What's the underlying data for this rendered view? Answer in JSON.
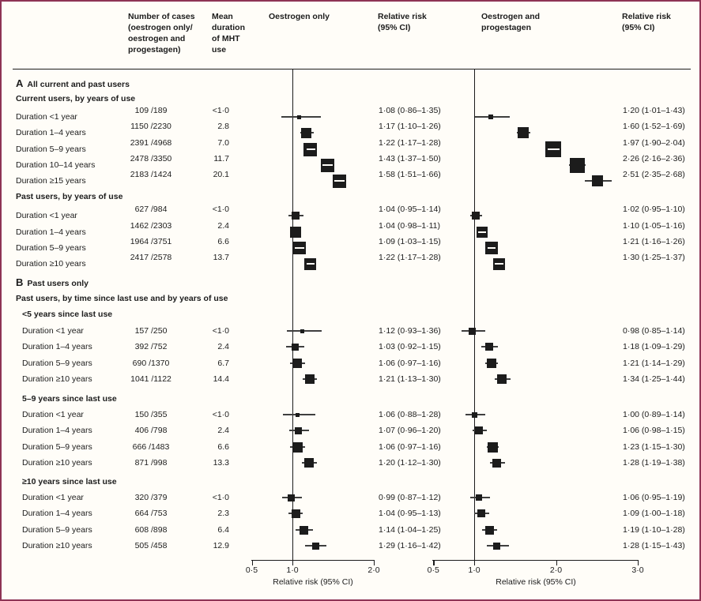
{
  "figure": {
    "bg": "#fffdf8",
    "border_color": "#8e3455",
    "ink": "#1c1c1c",
    "ci_line_color": "#3f3f3f"
  },
  "header": {
    "col_cases": [
      "Number of cases",
      "(oestrogen only/",
      "oestrogen and",
      "progestagen)"
    ],
    "col_duration": [
      "Mean",
      "duration",
      "of MHT",
      "use"
    ],
    "col_plot_left": "Oestrogen only",
    "col_rr_left": [
      "Relative risk",
      "(95% CI)"
    ],
    "col_plot_right": [
      "Oestrogen and",
      "progestagen"
    ],
    "col_rr_right": [
      "Relative risk",
      "(95% CI)"
    ]
  },
  "chart_data": {
    "type": "forest",
    "panels": [
      {
        "name": "Oestrogen only",
        "xlabel": "Relative risk (95% CI)",
        "scale": "linear",
        "xlim": [
          0.5,
          2.0
        ],
        "null_line": 1.0,
        "ticks": [
          {
            "v": 0.5,
            "label": "0·5"
          },
          {
            "v": 1.0,
            "label": "1·0"
          },
          {
            "v": 2.0,
            "label": "2·0"
          }
        ]
      },
      {
        "name": "Oestrogen and progestagen",
        "xlabel": "Relative risk (95% CI)",
        "scale": "linear",
        "xlim": [
          0.5,
          3.0
        ],
        "null_line": 1.0,
        "ticks": [
          {
            "v": 0.5,
            "label": "0·5"
          },
          {
            "v": 1.0,
            "label": "1·0"
          },
          {
            "v": 2.0,
            "label": "2·0"
          },
          {
            "v": 3.0,
            "label": "3·0"
          }
        ]
      }
    ],
    "rows": [
      {
        "kind": "section",
        "letter": "A",
        "text": "All current and past users"
      },
      {
        "kind": "group",
        "text": "Current users, by years of use",
        "indent": false
      },
      {
        "kind": "data",
        "sectionA": true,
        "indent": false,
        "label": "Duration <1 year",
        "cases": "109 /189",
        "duration": "<1·0",
        "left": {
          "rr": 1.08,
          "lo": 0.86,
          "hi": 1.35,
          "text": "1·08 (0·86–1·35)",
          "weight": 5
        },
        "right": {
          "rr": 1.2,
          "lo": 1.01,
          "hi": 1.43,
          "text": "1·20 (1·01–1·43)",
          "weight": 6
        }
      },
      {
        "kind": "data",
        "sectionA": true,
        "indent": false,
        "label": "Duration 1–4 years",
        "cases": "1150 /2230",
        "duration": "2.8",
        "left": {
          "rr": 1.17,
          "lo": 1.1,
          "hi": 1.26,
          "text": "1·17 (1·10–1·26)",
          "weight": 13
        },
        "right": {
          "rr": 1.6,
          "lo": 1.52,
          "hi": 1.69,
          "text": "1·60 (1·52–1·69)",
          "weight": 14
        }
      },
      {
        "kind": "data",
        "sectionA": true,
        "indent": false,
        "label": "Duration 5–9 years",
        "cases": "2391 /4968",
        "duration": "7.0",
        "left": {
          "rr": 1.22,
          "lo": 1.17,
          "hi": 1.28,
          "text": "1·22 (1·17–1·28)",
          "weight": 17
        },
        "right": {
          "rr": 1.97,
          "lo": 1.9,
          "hi": 2.04,
          "text": "1·97 (1·90–2·04)",
          "weight": 20
        }
      },
      {
        "kind": "data",
        "sectionA": true,
        "indent": false,
        "label": "Duration 10–14 years",
        "cases": "2478 /3350",
        "duration": "11.7",
        "left": {
          "rr": 1.43,
          "lo": 1.37,
          "hi": 1.5,
          "text": "1·43 (1·37–1·50)",
          "weight": 17
        },
        "right": {
          "rr": 2.26,
          "lo": 2.16,
          "hi": 2.36,
          "text": "2·26 (2·16–2·36)",
          "weight": 19
        }
      },
      {
        "kind": "data",
        "sectionA": true,
        "indent": false,
        "label": "Duration ≥15 years",
        "cases": "2183 /1424",
        "duration": "20.1",
        "left": {
          "rr": 1.58,
          "lo": 1.51,
          "hi": 1.66,
          "text": "1·58 (1·51–1·66)",
          "weight": 17
        },
        "right": {
          "rr": 2.51,
          "lo": 2.35,
          "hi": 2.68,
          "text": "2·51 (2·35–2·68)",
          "weight": 14
        }
      },
      {
        "kind": "group",
        "text": "Past users, by years of use",
        "indent": false
      },
      {
        "kind": "data",
        "sectionA": true,
        "indent": false,
        "label": "Duration <1 year",
        "cases": "627 /984",
        "duration": "<1·0",
        "left": {
          "rr": 1.04,
          "lo": 0.95,
          "hi": 1.14,
          "text": "1·04 (0·95–1·14)",
          "weight": 10
        },
        "right": {
          "rr": 1.02,
          "lo": 0.95,
          "hi": 1.1,
          "text": "1·02 (0·95–1·10)",
          "weight": 10
        }
      },
      {
        "kind": "data",
        "sectionA": true,
        "indent": false,
        "label": "Duration 1–4 years",
        "cases": "1462 /2303",
        "duration": "2.4",
        "left": {
          "rr": 1.04,
          "lo": 0.98,
          "hi": 1.11,
          "text": "1·04 (0·98–1·11)",
          "weight": 14
        },
        "right": {
          "rr": 1.1,
          "lo": 1.05,
          "hi": 1.16,
          "text": "1·10 (1·05–1·16)",
          "weight": 14
        }
      },
      {
        "kind": "data",
        "sectionA": true,
        "indent": false,
        "label": "Duration 5–9 years",
        "cases": "1964 /3751",
        "duration": "6.6",
        "left": {
          "rr": 1.09,
          "lo": 1.03,
          "hi": 1.15,
          "text": "1·09 (1·03–1·15)",
          "weight": 16
        },
        "right": {
          "rr": 1.21,
          "lo": 1.16,
          "hi": 1.26,
          "text": "1·21 (1·16–1·26)",
          "weight": 16
        }
      },
      {
        "kind": "data",
        "sectionA": true,
        "indent": false,
        "label": "Duration ≥10 years",
        "cases": "2417 /2578",
        "duration": "13.7",
        "left": {
          "rr": 1.22,
          "lo": 1.17,
          "hi": 1.28,
          "text": "1·22 (1·17–1·28)",
          "weight": 15
        },
        "right": {
          "rr": 1.3,
          "lo": 1.25,
          "hi": 1.37,
          "text": "1·30 (1·25–1·37)",
          "weight": 15
        }
      },
      {
        "kind": "section",
        "letter": "B",
        "text": "Past users only"
      },
      {
        "kind": "note",
        "text": "Past users, by time since last use and by years of use"
      },
      {
        "kind": "group",
        "text": "<5 years since last use",
        "indent": true
      },
      {
        "kind": "data",
        "sectionA": false,
        "indent": true,
        "label": "Duration <1 year",
        "cases": "157 /250",
        "duration": "<1·0",
        "left": {
          "rr": 1.12,
          "lo": 0.93,
          "hi": 1.36,
          "text": "1·12 (0·93–1·36)",
          "weight": 5
        },
        "right": {
          "rr": 0.98,
          "lo": 0.85,
          "hi": 1.14,
          "text": "0·98 (0·85–1·14)",
          "weight": 9
        }
      },
      {
        "kind": "data",
        "sectionA": false,
        "indent": true,
        "label": "Duration 1–4 years",
        "cases": "392 /752",
        "duration": "2.4",
        "left": {
          "rr": 1.03,
          "lo": 0.92,
          "hi": 1.15,
          "text": "1·03 (0·92–1·15)",
          "weight": 9
        },
        "right": {
          "rr": 1.18,
          "lo": 1.09,
          "hi": 1.29,
          "text": "1·18 (1·09–1·29)",
          "weight": 10
        }
      },
      {
        "kind": "data",
        "sectionA": false,
        "indent": true,
        "label": "Duration 5–9 years",
        "cases": "690 /1370",
        "duration": "6.7",
        "left": {
          "rr": 1.06,
          "lo": 0.97,
          "hi": 1.16,
          "text": "1·06 (0·97–1·16)",
          "weight": 12
        },
        "right": {
          "rr": 1.21,
          "lo": 1.14,
          "hi": 1.29,
          "text": "1·21 (1·14–1·29)",
          "weight": 12
        }
      },
      {
        "kind": "data",
        "sectionA": false,
        "indent": true,
        "label": "Duration ≥10 years",
        "cases": "1041 /1122",
        "duration": "14.4",
        "left": {
          "rr": 1.21,
          "lo": 1.13,
          "hi": 1.3,
          "text": "1·21 (1·13–1·30)",
          "weight": 12
        },
        "right": {
          "rr": 1.34,
          "lo": 1.25,
          "hi": 1.44,
          "text": "1·34 (1·25–1·44)",
          "weight": 12
        }
      },
      {
        "kind": "group",
        "text": "5–9 years since last use",
        "indent": true
      },
      {
        "kind": "data",
        "sectionA": false,
        "indent": true,
        "label": "Duration <1 year",
        "cases": "150 /355",
        "duration": "<1·0",
        "left": {
          "rr": 1.06,
          "lo": 0.88,
          "hi": 1.28,
          "text": "1·06 (0·88–1·28)",
          "weight": 5
        },
        "right": {
          "rr": 1.0,
          "lo": 0.89,
          "hi": 1.14,
          "text": "1·00 (0·89–1·14)",
          "weight": 7
        }
      },
      {
        "kind": "data",
        "sectionA": false,
        "indent": true,
        "label": "Duration 1–4 years",
        "cases": "406 /798",
        "duration": "2.4",
        "left": {
          "rr": 1.07,
          "lo": 0.96,
          "hi": 1.2,
          "text": "1·07 (0·96–1·20)",
          "weight": 9
        },
        "right": {
          "rr": 1.06,
          "lo": 0.98,
          "hi": 1.15,
          "text": "1·06 (0·98–1·15)",
          "weight": 10
        }
      },
      {
        "kind": "data",
        "sectionA": false,
        "indent": true,
        "label": "Duration 5–9 years",
        "cases": "666 /1483",
        "duration": "6.6",
        "left": {
          "rr": 1.06,
          "lo": 0.97,
          "hi": 1.16,
          "text": "1·06 (0·97–1·16)",
          "weight": 13
        },
        "right": {
          "rr": 1.23,
          "lo": 1.15,
          "hi": 1.3,
          "text": "1·23 (1·15–1·30)",
          "weight": 13
        }
      },
      {
        "kind": "data",
        "sectionA": false,
        "indent": true,
        "label": "Duration ≥10 years",
        "cases": "871 /998",
        "duration": "13.3",
        "left": {
          "rr": 1.2,
          "lo": 1.12,
          "hi": 1.3,
          "text": "1·20 (1·12–1·30)",
          "weight": 12
        },
        "right": {
          "rr": 1.28,
          "lo": 1.19,
          "hi": 1.38,
          "text": "1·28 (1·19–1·38)",
          "weight": 11
        }
      },
      {
        "kind": "group",
        "text": "≥10 years since last use",
        "indent": true
      },
      {
        "kind": "data",
        "sectionA": false,
        "indent": true,
        "label": "Duration <1 year",
        "cases": "320 /379",
        "duration": "<1·0",
        "left": {
          "rr": 0.99,
          "lo": 0.87,
          "hi": 1.12,
          "text": "0·99 (0·87–1·12)",
          "weight": 9
        },
        "right": {
          "rr": 1.06,
          "lo": 0.95,
          "hi": 1.19,
          "text": "1·06 (0·95–1·19)",
          "weight": 8
        }
      },
      {
        "kind": "data",
        "sectionA": false,
        "indent": true,
        "label": "Duration 1–4 years",
        "cases": "664 /753",
        "duration": "2.3",
        "left": {
          "rr": 1.04,
          "lo": 0.95,
          "hi": 1.13,
          "text": "1·04 (0·95–1·13)",
          "weight": 11
        },
        "right": {
          "rr": 1.09,
          "lo": 1.0,
          "hi": 1.18,
          "text": "1·09 (1·00–1·18)",
          "weight": 10
        }
      },
      {
        "kind": "data",
        "sectionA": false,
        "indent": true,
        "label": "Duration 5–9 years",
        "cases": "608 /898",
        "duration": "6.4",
        "left": {
          "rr": 1.14,
          "lo": 1.04,
          "hi": 1.25,
          "text": "1·14 (1·04–1·25)",
          "weight": 11
        },
        "right": {
          "rr": 1.19,
          "lo": 1.1,
          "hi": 1.28,
          "text": "1·19 (1·10–1·28)",
          "weight": 11
        }
      },
      {
        "kind": "data",
        "sectionA": false,
        "indent": true,
        "label": "Duration ≥10 years",
        "cases": "505 /458",
        "duration": "12.9",
        "left": {
          "rr": 1.29,
          "lo": 1.16,
          "hi": 1.42,
          "text": "1·29 (1·16–1·42)",
          "weight": 9
        },
        "right": {
          "rr": 1.28,
          "lo": 1.15,
          "hi": 1.43,
          "text": "1·28 (1·15–1·43)",
          "weight": 9
        }
      }
    ]
  }
}
